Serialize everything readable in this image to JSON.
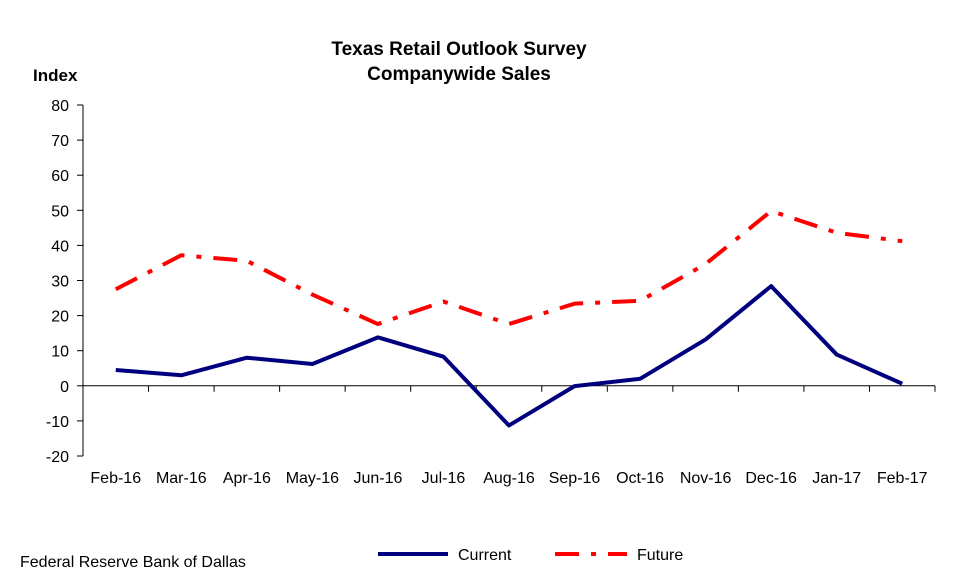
{
  "chart_data": {
    "type": "line",
    "title": "Texas Retail Outlook Survey",
    "subtitle": "Companywide  Sales",
    "ylabel": "Index",
    "xlabel": "",
    "ylim": [
      -20,
      80
    ],
    "yticks": [
      80,
      70,
      60,
      50,
      40,
      30,
      20,
      10,
      0,
      -10,
      -20
    ],
    "categories": [
      "Feb-16",
      "Mar-16",
      "Apr-16",
      "May-16",
      "Jun-16",
      "Jul-16",
      "Aug-16",
      "Sep-16",
      "Oct-16",
      "Nov-16",
      "Dec-16",
      "Jan-17",
      "Feb-17"
    ],
    "series": [
      {
        "name": "Current",
        "color": "#00007f",
        "style": "solid",
        "values": [
          4.5,
          3.0,
          8.0,
          6.2,
          13.8,
          8.3,
          -11.3,
          -0.1,
          2.0,
          13.2,
          28.4,
          8.9,
          0.6
        ]
      },
      {
        "name": "Future",
        "color": "#ff0000",
        "style": "dash-dot",
        "values": [
          27.5,
          37.2,
          35.6,
          26.0,
          17.6,
          24.0,
          17.6,
          23.4,
          24.2,
          34.7,
          49.8,
          43.6,
          41.2
        ]
      }
    ],
    "grid": false,
    "legend_position": "bottom-center"
  },
  "source": "Federal Reserve Bank of Dallas"
}
